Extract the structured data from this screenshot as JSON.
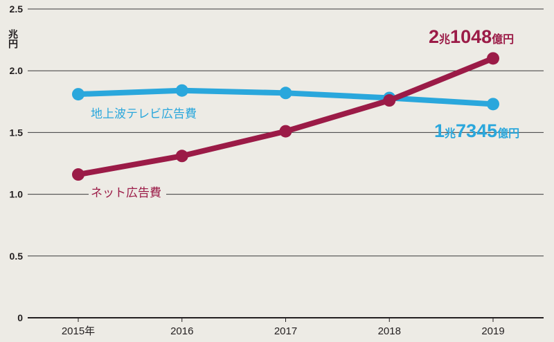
{
  "chart_data": {
    "type": "line",
    "categories": [
      "2015年",
      "2016",
      "2017",
      "2018",
      "2019"
    ],
    "series": [
      {
        "name": "地上波テレビ広告費",
        "values": [
          1.81,
          1.84,
          1.82,
          1.78,
          1.73
        ],
        "color": "#2aa7dc"
      },
      {
        "name": "ネット広告費",
        "values": [
          1.16,
          1.31,
          1.51,
          1.76,
          2.1
        ],
        "color": "#9b1b47"
      }
    ],
    "y_unit": "兆円",
    "ylim": [
      0,
      2.5
    ],
    "y_ticks": [
      "0",
      "0.5",
      "1.0",
      "1.5",
      "2.0",
      "2.5"
    ],
    "grid": true,
    "annotations": {
      "net_end": {
        "trillion": "2",
        "trillion_unit": "兆",
        "rest": "1048",
        "rest_unit": "億円"
      },
      "tv_end": {
        "trillion": "1",
        "trillion_unit": "兆",
        "rest": "7345",
        "rest_unit": "億円"
      }
    },
    "colors": {
      "background": "#edebe5",
      "grid": "#3a3a3a",
      "axis": "#231f20"
    }
  }
}
